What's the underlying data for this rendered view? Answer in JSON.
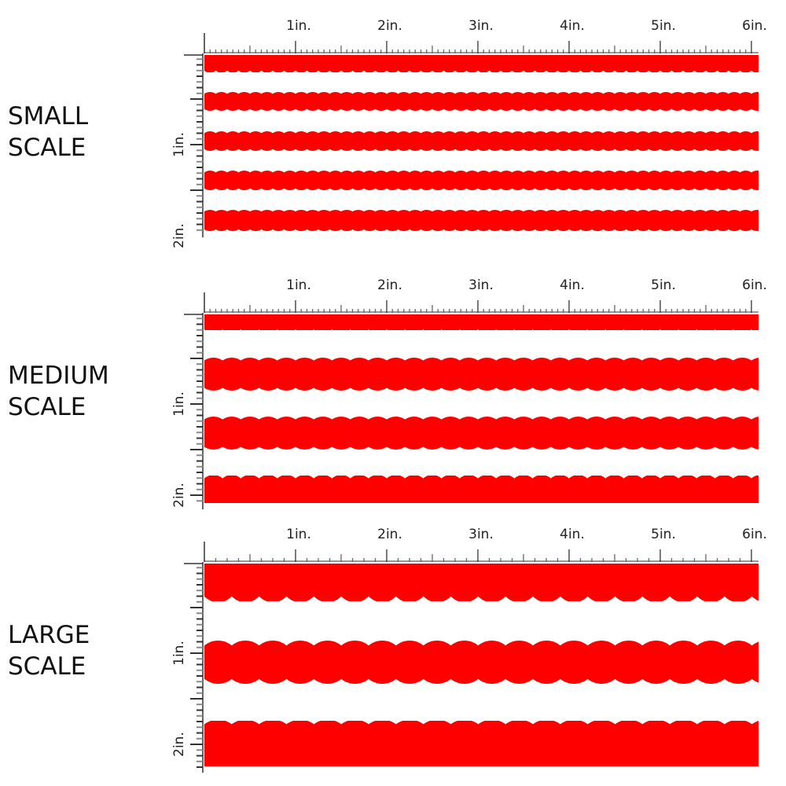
{
  "colors": {
    "stripe": "#ff0000",
    "ruler": "#333333",
    "background": "#ffffff"
  },
  "ruler_labels_horizontal": [
    "1in.",
    "2in.",
    "3in.",
    "4in.",
    "5in.",
    "6in."
  ],
  "ruler_labels_vertical": [
    "1in.",
    "2in."
  ],
  "panels": [
    {
      "name": "small",
      "line1": "SMALL",
      "line2": "SCALE",
      "scallops_per_inch": 8
    },
    {
      "name": "medium",
      "line1": "MEDIUM",
      "line2": "SCALE",
      "scallops_per_inch": 5
    },
    {
      "name": "large",
      "line1": "LARGE",
      "line2": "SCALE",
      "scallops_per_inch": 3.33
    }
  ]
}
